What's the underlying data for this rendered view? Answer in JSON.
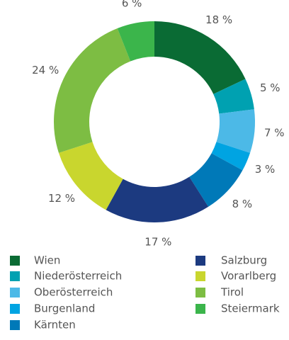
{
  "chart_data": {
    "type": "donut",
    "categories": [
      "Wien",
      "Niederösterreich",
      "Oberösterreich",
      "Burgenland",
      "Kärnten",
      "Salzburg",
      "Vorarlberg",
      "Tirol",
      "Steiermark"
    ],
    "values": [
      18,
      5,
      7,
      3,
      8,
      17,
      12,
      24,
      6
    ],
    "value_labels": [
      "18 %",
      "5 %",
      "7 %",
      "3 %",
      "8 %",
      "17 %",
      "12 %",
      "24 %",
      "6 %"
    ],
    "colors": [
      "#0a6b34",
      "#00a1b1",
      "#4cb9e7",
      "#00a4e2",
      "#0079b8",
      "#1c3a80",
      "#c9d62e",
      "#7dbd43",
      "#3bb54b"
    ],
    "legend": "bottom"
  }
}
